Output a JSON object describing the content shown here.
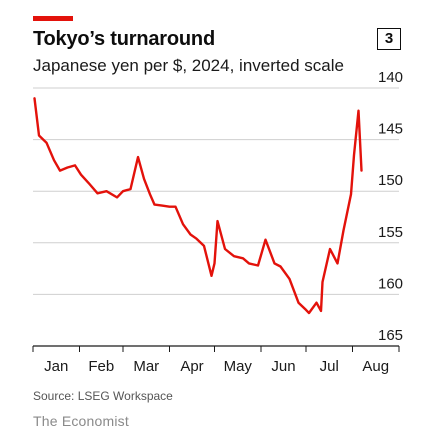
{
  "header": {
    "title": "Tokyo’s turnaround",
    "subtitle": "Japanese yen per $, 2024, inverted scale",
    "chart_number": "3"
  },
  "footer": {
    "source": "Source: LSEG Workspace",
    "brand": "The Economist"
  },
  "colors": {
    "line": "#e3120b",
    "accent": "#e3120b",
    "grid": "#cfcfcf"
  },
  "chart_data": {
    "type": "line",
    "title": "Tokyo’s turnaround",
    "subtitle": "Japanese yen per $, 2024, inverted scale",
    "ylabel": "Japanese yen per $",
    "y_inverted": true,
    "ylim": [
      140,
      165
    ],
    "y_ticks": [
      140,
      145,
      150,
      155,
      160,
      165
    ],
    "x_ticks": [
      "Jan",
      "Feb",
      "Mar",
      "Apr",
      "May",
      "Jun",
      "Jul",
      "Aug"
    ],
    "grid": true,
    "series": [
      {
        "x": [
          "2024-01-02",
          "2024-01-05",
          "2024-01-10",
          "2024-01-15",
          "2024-01-19",
          "2024-01-24",
          "2024-01-29",
          "2024-02-02",
          "2024-02-07",
          "2024-02-13",
          "2024-02-19",
          "2024-02-26",
          "2024-03-01",
          "2024-03-06",
          "2024-03-11",
          "2024-03-15",
          "2024-03-19",
          "2024-03-22",
          "2024-03-27",
          "2024-04-01",
          "2024-04-05",
          "2024-04-10",
          "2024-04-15",
          "2024-04-19",
          "2024-04-24",
          "2024-04-29",
          "2024-05-01",
          "2024-05-03",
          "2024-05-08",
          "2024-05-14",
          "2024-05-20",
          "2024-05-24",
          "2024-05-30",
          "2024-06-04",
          "2024-06-10",
          "2024-06-14",
          "2024-06-20",
          "2024-06-26",
          "2024-07-01",
          "2024-07-03",
          "2024-07-08",
          "2024-07-11",
          "2024-07-12",
          "2024-07-17",
          "2024-07-22",
          "2024-07-26",
          "2024-07-31",
          "2024-08-02",
          "2024-08-05",
          "2024-08-07"
        ],
        "values": [
          141.0,
          144.6,
          145.3,
          147.0,
          148.0,
          147.7,
          147.5,
          148.4,
          149.2,
          150.2,
          150.0,
          150.6,
          150.0,
          149.8,
          146.7,
          148.8,
          150.3,
          151.3,
          151.4,
          151.5,
          151.5,
          153.2,
          154.2,
          154.6,
          155.3,
          158.2,
          157.0,
          152.9,
          155.6,
          156.3,
          156.5,
          157.0,
          157.2,
          154.7,
          157.0,
          157.3,
          158.5,
          160.8,
          161.5,
          161.8,
          160.8,
          161.6,
          158.8,
          155.6,
          157.0,
          153.8,
          150.3,
          146.5,
          142.2,
          148.0
        ]
      }
    ]
  }
}
